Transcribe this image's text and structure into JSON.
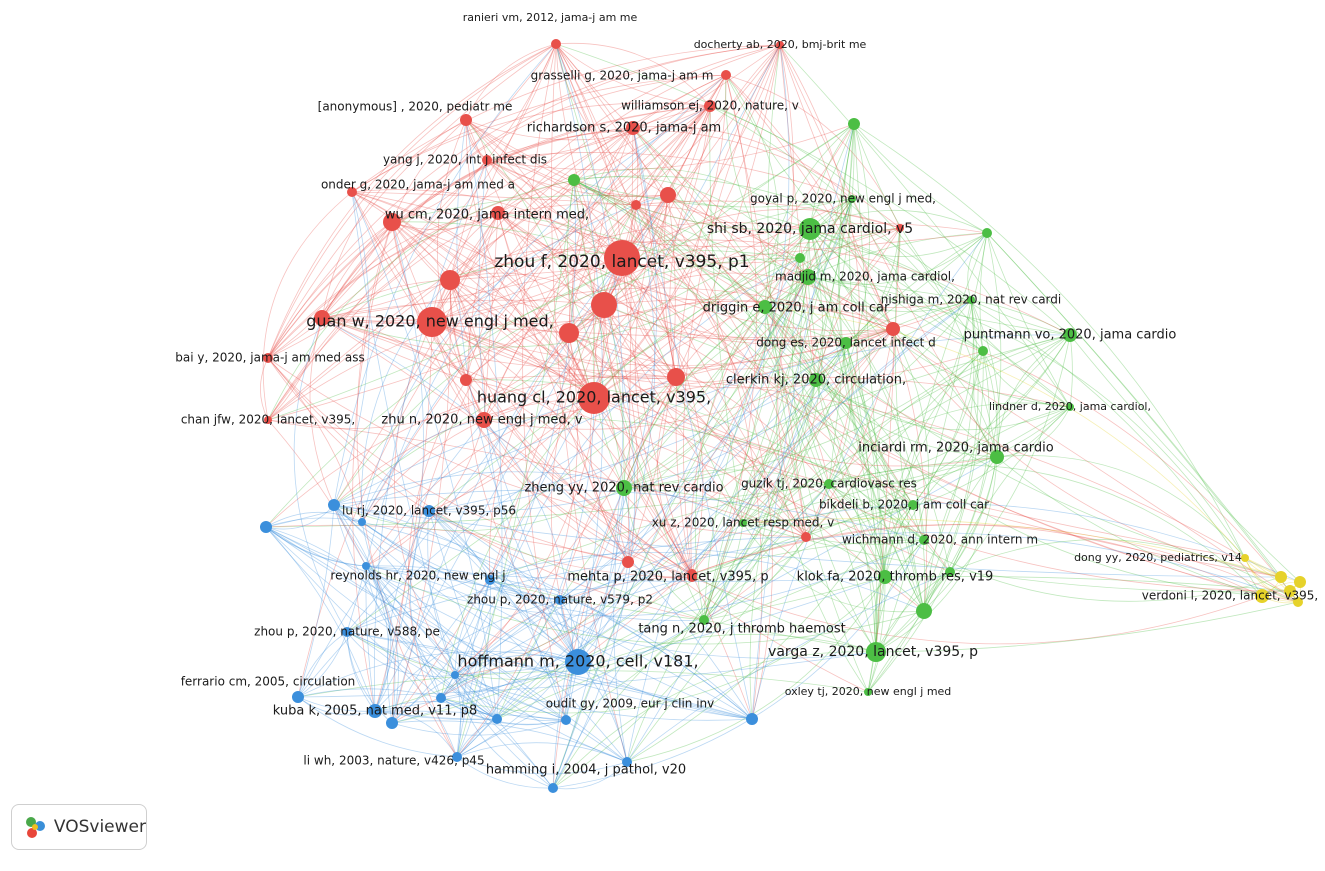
{
  "nodes": [
    {
      "label": "ranieri vm, 2012, jama-j am me"
    },
    {
      "label": "docherty ab, 2020, bmj-brit me"
    },
    {
      "label": "grasselli g, 2020, jama-j am m"
    },
    {
      "label": "williamson ej, 2020, nature, v"
    },
    {
      "label": "[anonymous] , 2020, pediatr me"
    },
    {
      "label": "richardson s, 2020, jama-j am"
    },
    {
      "label": "yang j, 2020, int j infect dis"
    },
    {
      "label": "onder g, 2020, jama-j am med a"
    },
    {
      "label": "wu cm, 2020, jama intern med,"
    },
    {
      "label": "zhou f, 2020, lancet, v395, p1"
    },
    {
      "label": "guan w, 2020, new engl j med,"
    },
    {
      "label": "bai y, 2020, jama-j am med ass"
    },
    {
      "label": "huang cl, 2020, lancet, v395,"
    },
    {
      "label": "chan jfw, 2020, lancet, v395,"
    },
    {
      "label": "zhu n, 2020, new engl j med, v"
    },
    {
      "label": "shi sb, 2020, jama cardiol, v5"
    },
    {
      "label": "goyal p, 2020, new engl j med,"
    },
    {
      "label": "madjid m, 2020, jama cardiol,"
    },
    {
      "label": "nishiga m, 2020, nat rev cardi"
    },
    {
      "label": "driggin e, 2020, j am coll car"
    },
    {
      "label": "puntmann vo, 2020, jama cardio"
    },
    {
      "label": "dong es, 2020, lancet infect d"
    },
    {
      "label": "clerkin kj, 2020, circulation,"
    },
    {
      "label": "lindner d, 2020, jama cardiol,"
    },
    {
      "label": "inciardi rm, 2020, jama cardio"
    },
    {
      "label": "guzik tj, 2020, cardiovasc res"
    },
    {
      "label": "zheng yy, 2020, nat rev cardio"
    },
    {
      "label": "bikdeli b, 2020, j am coll car"
    },
    {
      "label": "xu z, 2020, lancet resp med, v"
    },
    {
      "label": "wichmann d, 2020, ann intern m"
    },
    {
      "label": "mehta p, 2020, lancet, v395, p"
    },
    {
      "label": "klok fa, 2020, thromb res, v19"
    },
    {
      "label": "tang n, 2020, j thromb haemost"
    },
    {
      "label": "varga z, 2020, lancet, v395, p"
    },
    {
      "label": "oxley tj, 2020, new engl j med"
    },
    {
      "label": "lu rj, 2020, lancet, v395, p56"
    },
    {
      "label": "reynolds hr, 2020, new engl j"
    },
    {
      "label": "zhou p, 2020, nature, v579, p2"
    },
    {
      "label": "zhou p, 2020, nature, v588, pe"
    },
    {
      "label": "hoffmann m, 2020, cell, v181,"
    },
    {
      "label": "ferrario cm, 2005, circulation"
    },
    {
      "label": "kuba k, 2005, nat med, v11, p8"
    },
    {
      "label": "oudit gy, 2009, eur j clin inv"
    },
    {
      "label": "li wh, 2003, nature, v426, p45"
    },
    {
      "label": "hamming i, 2004, j pathol, v20"
    },
    {
      "label": "dong yy, 2020, pediatrics, v14"
    },
    {
      "label": "verdoni l, 2020, lancet, v395,"
    }
  ],
  "logo": "VOSviewer"
}
